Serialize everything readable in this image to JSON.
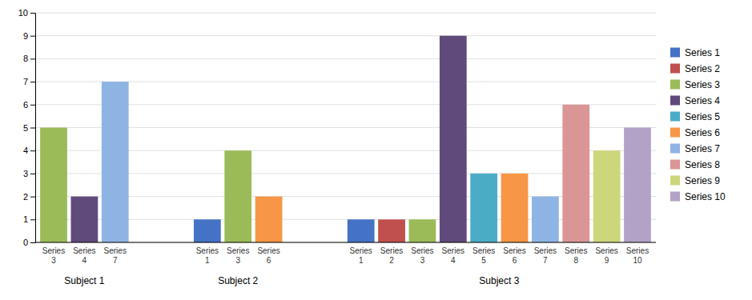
{
  "chart_data": {
    "type": "bar",
    "categories": [
      "Subject 1",
      "Subject 2",
      "Subject 3"
    ],
    "series": [
      {
        "name": "Series 1",
        "color": "#4472C4",
        "values": [
          null,
          1,
          1
        ]
      },
      {
        "name": "Series 2",
        "color": "#C0504D",
        "values": [
          null,
          null,
          1
        ]
      },
      {
        "name": "Series 3",
        "color": "#9BBB59",
        "values": [
          5,
          4,
          1
        ]
      },
      {
        "name": "Series 4",
        "color": "#604A7B",
        "values": [
          2,
          null,
          9
        ]
      },
      {
        "name": "Series 5",
        "color": "#4BACC6",
        "values": [
          null,
          null,
          3
        ]
      },
      {
        "name": "Series 6",
        "color": "#F79646",
        "values": [
          null,
          2,
          3
        ]
      },
      {
        "name": "Series 7",
        "color": "#8EB4E3",
        "values": [
          7,
          null,
          2
        ]
      },
      {
        "name": "Series 8",
        "color": "#D99694",
        "values": [
          null,
          null,
          6
        ]
      },
      {
        "name": "Series 9",
        "color": "#CDD67B",
        "values": [
          null,
          null,
          4
        ]
      },
      {
        "name": "Series 10",
        "color": "#B3A2C7",
        "values": [
          null,
          null,
          5
        ]
      }
    ],
    "ylim": [
      0,
      10
    ],
    "yticks": [
      0,
      1,
      2,
      3,
      4,
      5,
      6,
      7,
      8,
      9,
      10
    ],
    "grid": true,
    "legend": "right"
  }
}
